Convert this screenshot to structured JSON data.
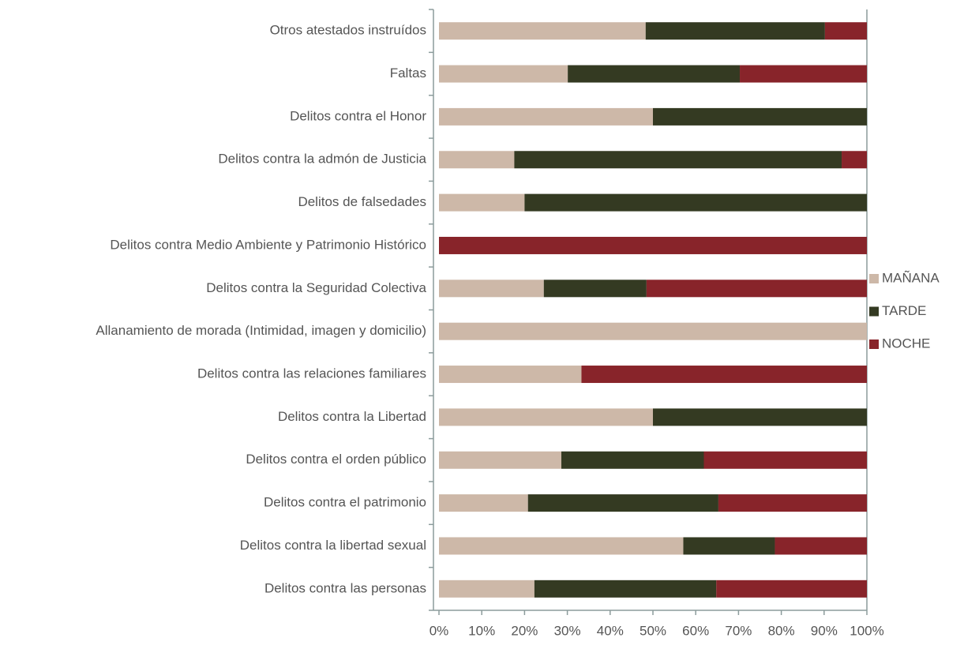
{
  "chart_data": {
    "type": "stacked-bar-horizontal",
    "categories": [
      "Otros atestados instruídos",
      "Faltas",
      "Delitos contra el Honor",
      "Delitos contra la admón de Justicia",
      "Delitos de falsedades",
      "Delitos contra Medio Ambiente y Patrimonio Histórico",
      "Delitos contra la Seguridad Colectiva",
      "Allanamiento de morada (Intimidad, imagen y domicilio)",
      "Delitos contra las relaciones familiares",
      "Delitos contra la Libertad",
      "Delitos contra el orden público",
      "Delitos contra el patrimonio",
      "Delitos contra la libertad sexual",
      "Delitos contra las personas"
    ],
    "series": [
      {
        "name": "MAÑANA",
        "color": "#cdb8a8",
        "values": [
          48.3,
          30.1,
          50,
          17.6,
          20,
          0,
          24.5,
          100,
          33.3,
          50,
          28.6,
          20.8,
          57.1,
          22.3
        ]
      },
      {
        "name": "TARDE",
        "color": "#343a22",
        "values": [
          41.9,
          40.2,
          50,
          76.5,
          80,
          0,
          24,
          0,
          0,
          50,
          33.3,
          44.5,
          21.4,
          42.5
        ]
      },
      {
        "name": "NOCHE",
        "color": "#88242a",
        "values": [
          9.8,
          29.7,
          0,
          5.9,
          0,
          100,
          51.5,
          0,
          66.7,
          0,
          38.1,
          34.7,
          21.5,
          35.2
        ]
      }
    ],
    "xlim": [
      0,
      100
    ],
    "xticks": [
      {
        "value": 0,
        "label": "0%"
      },
      {
        "value": 10,
        "label": "10%"
      },
      {
        "value": 20,
        "label": "20%"
      },
      {
        "value": 30,
        "label": "30%"
      },
      {
        "value": 40,
        "label": "40%"
      },
      {
        "value": 50,
        "label": "50%"
      },
      {
        "value": 60,
        "label": "60%"
      },
      {
        "value": 70,
        "label": "70%"
      },
      {
        "value": 80,
        "label": "80%"
      },
      {
        "value": 90,
        "label": "90%"
      },
      {
        "value": 100,
        "label": "100%"
      }
    ],
    "legend": "right"
  }
}
